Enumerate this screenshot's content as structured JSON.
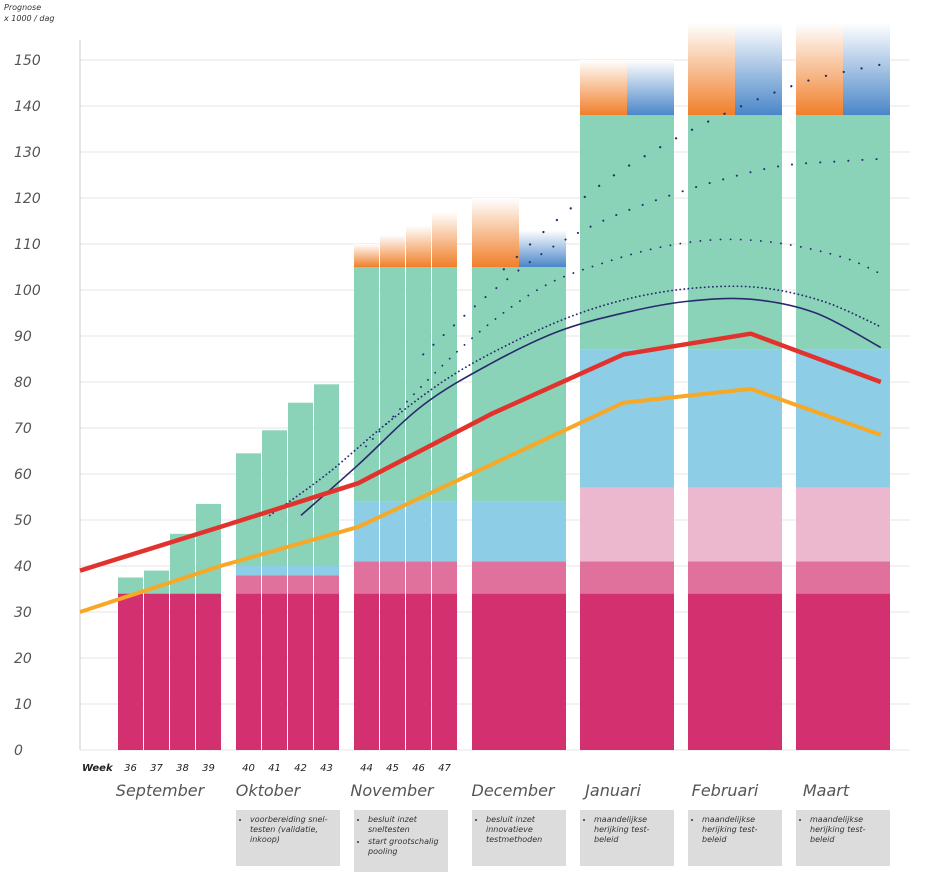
{
  "chart_data": {
    "type": "bar",
    "ylabel_line1": "Prognose",
    "ylabel_line2": "x 1000 / dag",
    "ylim": [
      0,
      150
    ],
    "yticks": [
      0,
      10,
      20,
      30,
      40,
      50,
      60,
      70,
      80,
      90,
      100,
      110,
      120,
      130,
      140,
      150
    ],
    "week_label": "Week",
    "weeks": [
      "36",
      "37",
      "38",
      "39",
      "40",
      "41",
      "42",
      "43",
      "44",
      "45",
      "46",
      "47"
    ],
    "months": [
      "September",
      "Oktober",
      "November",
      "December",
      "Januari",
      "Februari",
      "Maart"
    ],
    "colors": {
      "magenta": "#d2306e",
      "pink_mid": "#e0709c",
      "pink_light": "#ecb8cd",
      "light_blue": "#8ecde6",
      "green": "#8ad3b8",
      "orange": "#f07f2a",
      "blue": "#4a86c8",
      "red_line": "#e2322d",
      "yellow_line": "#f7a826",
      "navy_line": "#2a2a6e"
    },
    "bars": [
      {
        "category": "36",
        "stack": [
          34,
          0,
          0,
          0,
          3.5
        ],
        "orange": 0,
        "blue": 0
      },
      {
        "category": "37",
        "stack": [
          34,
          0,
          0,
          0,
          5
        ],
        "orange": 0,
        "blue": 0
      },
      {
        "category": "38",
        "stack": [
          34,
          0,
          0,
          0,
          13
        ],
        "orange": 0,
        "blue": 0
      },
      {
        "category": "39",
        "stack": [
          34,
          0,
          0,
          0,
          19.5
        ],
        "orange": 0,
        "blue": 0
      },
      {
        "category": "40",
        "stack": [
          34,
          4,
          0,
          2,
          24.5
        ],
        "orange": 0,
        "blue": 0
      },
      {
        "category": "41",
        "stack": [
          34,
          4,
          0,
          2,
          29.5
        ],
        "orange": 0,
        "blue": 0
      },
      {
        "category": "42",
        "stack": [
          34,
          4,
          0,
          2,
          35.5
        ],
        "orange": 0,
        "blue": 0
      },
      {
        "category": "43",
        "stack": [
          34,
          4,
          0,
          2,
          39.5
        ],
        "orange": 0,
        "blue": 0
      },
      {
        "category": "44",
        "stack": [
          34,
          7,
          0,
          13,
          51
        ],
        "orange": 5,
        "blue": 0
      },
      {
        "category": "45",
        "stack": [
          34,
          7,
          0,
          13,
          51
        ],
        "orange": 7,
        "blue": 0
      },
      {
        "category": "46",
        "stack": [
          34,
          7,
          0,
          13,
          51
        ],
        "orange": 9,
        "blue": 0
      },
      {
        "category": "47",
        "stack": [
          34,
          7,
          0,
          13,
          51
        ],
        "orange": 12,
        "blue": 0
      },
      {
        "category": "December",
        "stack": [
          34,
          7,
          0,
          13,
          51
        ],
        "orange": 15,
        "blue": 8
      },
      {
        "category": "Januari",
        "stack": [
          34,
          7,
          16,
          30,
          51
        ],
        "orange": 12,
        "blue": 12
      },
      {
        "category": "Februari",
        "stack": [
          34,
          7,
          16,
          30,
          51
        ],
        "orange": 20,
        "blue": 20
      },
      {
        "category": "Maart",
        "stack": [
          34,
          7,
          16,
          30,
          51
        ],
        "orange": 20,
        "blue": 20
      }
    ],
    "lines": {
      "red": [
        [
          0,
          39
        ],
        [
          5.4,
          48.5
        ],
        [
          10.7,
          58
        ],
        [
          15.8,
          73
        ],
        [
          20.9,
          86
        ],
        [
          25.8,
          90.5
        ],
        [
          30.8,
          80
        ]
      ],
      "yellow": [
        [
          0,
          30
        ],
        [
          5.4,
          40
        ],
        [
          10.7,
          48.5
        ],
        [
          15.8,
          62
        ],
        [
          20.9,
          75.5
        ],
        [
          25.8,
          78.5
        ],
        [
          30.8,
          68.5
        ]
      ],
      "navy_solid": [
        [
          8.5,
          51
        ],
        [
          10.7,
          62
        ],
        [
          13.2,
          75
        ],
        [
          15.8,
          84
        ],
        [
          18.4,
          91
        ],
        [
          20.9,
          95
        ],
        [
          23.3,
          97.5
        ],
        [
          25.8,
          98
        ],
        [
          28.3,
          95
        ],
        [
          30.8,
          87.5
        ]
      ],
      "navy_dotted_dense": [
        [
          7.3,
          51
        ],
        [
          9.5,
          60
        ],
        [
          11.8,
          71
        ],
        [
          14.2,
          81
        ],
        [
          16.6,
          88.5
        ],
        [
          19.0,
          94.5
        ],
        [
          21.4,
          98.5
        ],
        [
          23.8,
          100.5
        ],
        [
          26.2,
          100.5
        ],
        [
          28.6,
          97.5
        ],
        [
          30.8,
          92
        ]
      ],
      "navy_dotted_1": [
        [
          11.0,
          66
        ],
        [
          13.3,
          80
        ],
        [
          15.6,
          92
        ],
        [
          17.9,
          101
        ],
        [
          20.2,
          106
        ],
        [
          22.5,
          109.5
        ],
        [
          24.8,
          111
        ],
        [
          27.1,
          110
        ],
        [
          29.4,
          107
        ],
        [
          30.8,
          103.5
        ]
      ],
      "navy_dotted_2": [
        [
          13.2,
          86
        ],
        [
          15.5,
          98
        ],
        [
          17.8,
          108
        ],
        [
          20.1,
          115
        ],
        [
          22.4,
          120
        ],
        [
          24.7,
          124
        ],
        [
          27.0,
          127
        ],
        [
          29.3,
          128
        ],
        [
          30.8,
          128.5
        ]
      ],
      "navy_dotted_3": [
        [
          16.3,
          104.5
        ],
        [
          18.3,
          115
        ],
        [
          20.3,
          124
        ],
        [
          22.3,
          131
        ],
        [
          24.3,
          137
        ],
        [
          26.3,
          142
        ],
        [
          28.3,
          146
        ],
        [
          30.8,
          149
        ]
      ]
    }
  },
  "notes": [
    {
      "items": [
        "voorbereiding snel-testen (validatie, inkoop)"
      ]
    },
    {
      "items": [
        "besluit inzet sneltesten",
        "start grootschalig pooling"
      ]
    },
    {
      "items": [
        "besluit inzet innovatieve testmethoden"
      ]
    },
    {
      "items": [
        "maandelijkse herijking test-beleid"
      ]
    },
    {
      "items": [
        "maandelijkse herijking test-beleid"
      ]
    },
    {
      "items": [
        "maandelijkse herijking test-beleid"
      ]
    }
  ]
}
